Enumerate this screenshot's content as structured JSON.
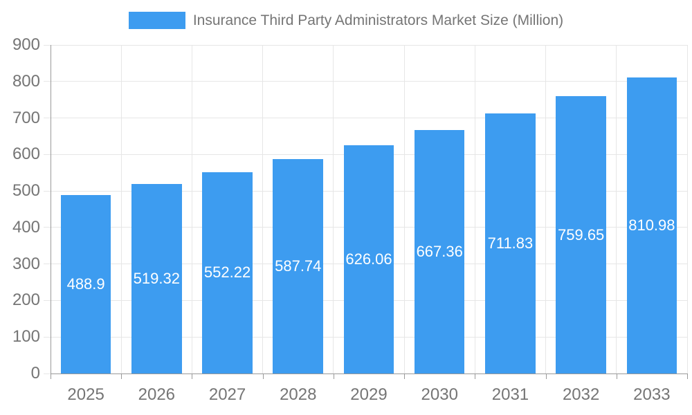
{
  "chart_data": {
    "type": "bar",
    "title": "Insurance Third Party Administrators Market Size (Million)",
    "categories": [
      "2025",
      "2026",
      "2027",
      "2028",
      "2029",
      "2030",
      "2031",
      "2032",
      "2033"
    ],
    "values": [
      488.9,
      519.32,
      552.22,
      587.74,
      626.06,
      667.36,
      711.83,
      759.65,
      810.98
    ],
    "value_labels": [
      "488.9",
      "519.32",
      "552.22",
      "587.74",
      "626.06",
      "667.36",
      "711.83",
      "759.65",
      "810.98"
    ],
    "xlabel": "",
    "ylabel": "",
    "ylim": [
      0,
      900
    ],
    "ytick_labels": [
      "0",
      "100",
      "200",
      "300",
      "400",
      "500",
      "600",
      "700",
      "800",
      "900"
    ],
    "grid": true,
    "legend_position": "top-center",
    "bar_color": "#3d9cf0",
    "value_label_color": "#ffffff",
    "grid_color": "#e6e6e6",
    "axis_line_color": "#999999",
    "axis_text_color": "#757575"
  }
}
